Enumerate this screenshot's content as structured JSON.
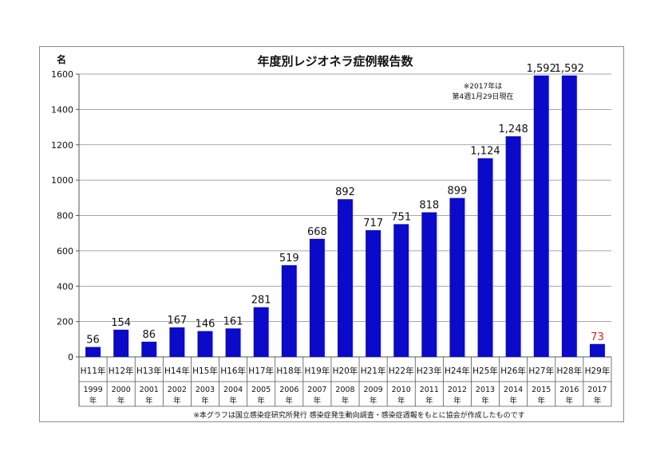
{
  "chart_data": {
    "type": "bar",
    "title": "年度別レジオネラ症例報告数",
    "ylabel": "名",
    "ylim": [
      0,
      1600
    ],
    "yticks": [
      0,
      200,
      400,
      600,
      800,
      1000,
      1200,
      1400,
      1600
    ],
    "categories": [
      "H11年",
      "H12年",
      "H13年",
      "H14年",
      "H15年",
      "H16年",
      "H17年",
      "H18年",
      "H19年",
      "H20年",
      "H21年",
      "H22年",
      "H23年",
      "H24年",
      "H25年",
      "H26年",
      "H27年",
      "H28年",
      "H29年"
    ],
    "western_years": [
      "1999",
      "2000",
      "2001",
      "2002",
      "2003",
      "2004",
      "2005",
      "2006",
      "2007",
      "2008",
      "2009",
      "2010",
      "2011",
      "2012",
      "2013",
      "2014",
      "2015",
      "2016",
      "2017"
    ],
    "year_suffix": "年",
    "values": [
      56,
      154,
      86,
      167,
      146,
      161,
      281,
      519,
      668,
      892,
      717,
      751,
      818,
      899,
      1124,
      1248,
      1592,
      1592,
      73
    ],
    "value_labels": [
      "56",
      "154",
      "86",
      "167",
      "146",
      "161",
      "281",
      "519",
      "668",
      "892",
      "717",
      "751",
      "818",
      "899",
      "1,124",
      "1,248",
      "1,592",
      "1,592",
      "73"
    ],
    "highlight_index": 18,
    "bar_color": "#0a0ac8",
    "highlight_label_color": "#e02020",
    "grid": true,
    "note_lines": [
      "※2017年は",
      "第4週1月29日現在"
    ],
    "source": "※本グラフは国立感染症研究所発行 感染症発生動向調査・感染症週報をもとに協会が作成したものです"
  }
}
